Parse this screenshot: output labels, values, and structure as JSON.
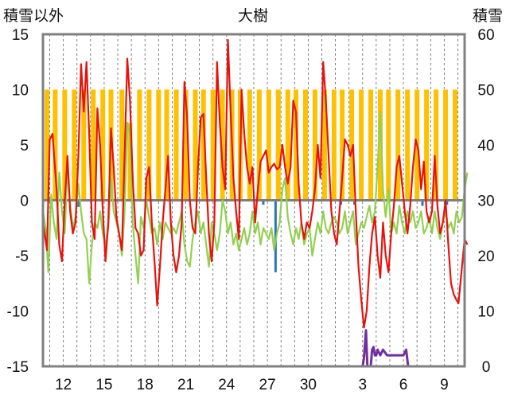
{
  "chart_data": {
    "type": "line",
    "title": "大樹",
    "left_axis_label": "積雪以外",
    "right_axis_label": "積雪",
    "left_ylim": [
      -15,
      15
    ],
    "right_ylim": [
      0,
      60
    ],
    "left_ticks": [
      "15",
      "10",
      "5",
      "0",
      "-5",
      "-10",
      "-15"
    ],
    "right_ticks": [
      "60",
      "50",
      "40",
      "30",
      "20",
      "10",
      "0"
    ],
    "x_ticks": [
      {
        "day": 12,
        "label": "12"
      },
      {
        "day": 15,
        "label": "15"
      },
      {
        "day": 18,
        "label": "18"
      },
      {
        "day": 21,
        "label": "21"
      },
      {
        "day": 24,
        "label": "24"
      },
      {
        "day": 27,
        "label": "27"
      },
      {
        "day": 30,
        "label": "30"
      },
      {
        "day": 34,
        "label": "3"
      },
      {
        "day": 37,
        "label": "6"
      },
      {
        "day": 40,
        "label": "9"
      }
    ],
    "xlim": [
      10.5,
      41.5
    ],
    "grid": "vertical-dashed-daily",
    "colors": {
      "sunshine": "#FFC000",
      "precip": "#2E75B6",
      "temperature": "#E8120C",
      "other": "#92D050",
      "snow": "#7030A0",
      "zero_line": "#7F7F7F",
      "frame": "#808080"
    },
    "sunshine_bars": [
      {
        "day": 10.8,
        "top": 10
      },
      {
        "day": 11.4,
        "top": 10
      },
      {
        "day": 12.1,
        "top": 10
      },
      {
        "day": 12.8,
        "top": 10
      },
      {
        "day": 13.5,
        "top": 10
      },
      {
        "day": 14.2,
        "top": 10
      },
      {
        "day": 14.9,
        "top": 10
      },
      {
        "day": 15.5,
        "top": 10
      },
      {
        "day": 16.3,
        "top": 10
      },
      {
        "day": 16.9,
        "top": 7
      },
      {
        "day": 17.6,
        "top": 10
      },
      {
        "day": 18.3,
        "top": 10
      },
      {
        "day": 19.0,
        "top": 10
      },
      {
        "day": 19.6,
        "top": 10
      },
      {
        "day": 20.3,
        "top": 10
      },
      {
        "day": 21.0,
        "top": 10
      },
      {
        "day": 21.7,
        "top": 10
      },
      {
        "day": 22.3,
        "top": 10
      },
      {
        "day": 23.0,
        "top": 10
      },
      {
        "day": 23.7,
        "top": 10
      },
      {
        "day": 24.4,
        "top": 10
      },
      {
        "day": 25.0,
        "top": 10
      },
      {
        "day": 25.7,
        "top": 10
      },
      {
        "day": 26.4,
        "top": 10
      },
      {
        "day": 27.1,
        "top": 10
      },
      {
        "day": 27.8,
        "top": 10
      },
      {
        "day": 28.5,
        "top": 10
      },
      {
        "day": 29.1,
        "top": 10
      },
      {
        "day": 29.8,
        "top": 10
      },
      {
        "day": 30.5,
        "top": 10
      },
      {
        "day": 31.2,
        "top": 10
      },
      {
        "day": 31.9,
        "top": 10
      },
      {
        "day": 32.5,
        "top": 10
      },
      {
        "day": 33.2,
        "top": 10
      },
      {
        "day": 33.9,
        "top": 10
      },
      {
        "day": 34.6,
        "top": 10
      },
      {
        "day": 35.3,
        "top": 10
      },
      {
        "day": 35.9,
        "top": 10
      },
      {
        "day": 36.6,
        "top": 10
      },
      {
        "day": 37.3,
        "top": 10
      },
      {
        "day": 38.0,
        "top": 10
      },
      {
        "day": 38.7,
        "top": 10
      },
      {
        "day": 39.4,
        "top": 10
      },
      {
        "day": 40.1,
        "top": 10
      },
      {
        "day": 40.8,
        "top": 10
      }
    ],
    "precip_bars": [
      {
        "day": 13.1,
        "value": -0.6
      },
      {
        "day": 26.7,
        "value": -0.4
      },
      {
        "day": 27.6,
        "value": -6.5
      },
      {
        "day": 32.4,
        "value": -0.4
      },
      {
        "day": 33.4,
        "value": -0.4
      },
      {
        "day": 38.4,
        "value": -0.5
      },
      {
        "day": 40.2,
        "value": -0.4
      }
    ],
    "temperature": [
      [
        10.5,
        -2
      ],
      [
        10.8,
        -4.5
      ],
      [
        11.0,
        5.5
      ],
      [
        11.2,
        6
      ],
      [
        11.5,
        1
      ],
      [
        11.7,
        -4
      ],
      [
        11.9,
        -5.5
      ],
      [
        12.1,
        0
      ],
      [
        12.3,
        4
      ],
      [
        12.5,
        -1
      ],
      [
        12.7,
        -3
      ],
      [
        12.9,
        -2
      ],
      [
        13.1,
        4
      ],
      [
        13.3,
        12.3
      ],
      [
        13.5,
        8
      ],
      [
        13.7,
        12.5
      ],
      [
        13.9,
        6
      ],
      [
        14.1,
        -2
      ],
      [
        14.3,
        -3.5
      ],
      [
        14.5,
        8.3
      ],
      [
        14.7,
        5
      ],
      [
        14.9,
        -1
      ],
      [
        15.1,
        -5.5
      ],
      [
        15.3,
        -2
      ],
      [
        15.5,
        6.5
      ],
      [
        15.7,
        3
      ],
      [
        15.9,
        -1.5
      ],
      [
        16.1,
        -3
      ],
      [
        16.3,
        -4.5
      ],
      [
        16.5,
        4
      ],
      [
        16.7,
        12.8
      ],
      [
        16.9,
        9
      ],
      [
        17.1,
        2
      ],
      [
        17.3,
        -2.5
      ],
      [
        17.5,
        -3
      ],
      [
        17.7,
        -5
      ],
      [
        17.9,
        -4.5
      ],
      [
        18.1,
        2
      ],
      [
        18.3,
        3
      ],
      [
        18.5,
        -2
      ],
      [
        18.7,
        -5.5
      ],
      [
        18.9,
        -9.5
      ],
      [
        19.1,
        -6
      ],
      [
        19.3,
        -2
      ],
      [
        19.5,
        1
      ],
      [
        19.7,
        4
      ],
      [
        19.9,
        -2
      ],
      [
        20.1,
        -5
      ],
      [
        20.3,
        -6.5
      ],
      [
        20.5,
        -5
      ],
      [
        20.7,
        -2
      ],
      [
        20.9,
        10.7
      ],
      [
        21.1,
        7.5
      ],
      [
        21.3,
        0
      ],
      [
        21.5,
        -2.5
      ],
      [
        21.7,
        -3
      ],
      [
        21.9,
        3
      ],
      [
        22.1,
        7.5
      ],
      [
        22.3,
        7.8
      ],
      [
        22.5,
        2
      ],
      [
        22.7,
        -3
      ],
      [
        22.9,
        -5.5
      ],
      [
        23.1,
        -2
      ],
      [
        23.3,
        12.5
      ],
      [
        23.5,
        7
      ],
      [
        23.7,
        3
      ],
      [
        23.9,
        1
      ],
      [
        24.1,
        14.5
      ],
      [
        24.3,
        8
      ],
      [
        24.5,
        2
      ],
      [
        24.7,
        -1
      ],
      [
        24.9,
        -3.5
      ],
      [
        25.1,
        10
      ],
      [
        25.3,
        6
      ],
      [
        25.5,
        3
      ],
      [
        25.7,
        1.5
      ],
      [
        25.9,
        3
      ],
      [
        26.1,
        -2
      ],
      [
        26.3,
        1
      ],
      [
        26.5,
        3.5
      ],
      [
        26.7,
        4
      ],
      [
        26.9,
        4.5
      ],
      [
        27.1,
        2.5
      ],
      [
        27.3,
        3
      ],
      [
        27.5,
        3.3
      ],
      [
        27.7,
        2.8
      ],
      [
        27.9,
        3
      ],
      [
        28.1,
        5
      ],
      [
        28.3,
        3
      ],
      [
        28.5,
        1.5
      ],
      [
        28.7,
        3
      ],
      [
        28.9,
        9
      ],
      [
        29.1,
        8
      ],
      [
        29.3,
        1.5
      ],
      [
        29.5,
        -2
      ],
      [
        29.7,
        -3.5
      ],
      [
        29.9,
        -2
      ],
      [
        30.1,
        -2.5
      ],
      [
        30.3,
        -1
      ],
      [
        30.5,
        1
      ],
      [
        30.7,
        5
      ],
      [
        30.9,
        2
      ],
      [
        31.1,
        12.5
      ],
      [
        31.3,
        9
      ],
      [
        31.5,
        4
      ],
      [
        31.7,
        -1
      ],
      [
        31.9,
        -3
      ],
      [
        32.1,
        -4
      ],
      [
        32.3,
        -1
      ],
      [
        32.5,
        2
      ],
      [
        32.7,
        5.5
      ],
      [
        32.9,
        5
      ],
      [
        33.1,
        4
      ],
      [
        33.3,
        5
      ],
      [
        33.5,
        -1
      ],
      [
        33.7,
        -6
      ],
      [
        33.9,
        -9
      ],
      [
        34.1,
        -11.5
      ],
      [
        34.3,
        -10
      ],
      [
        34.5,
        -6
      ],
      [
        34.7,
        -3
      ],
      [
        34.9,
        -1.5
      ],
      [
        35.1,
        -5
      ],
      [
        35.3,
        -7
      ],
      [
        35.5,
        -2
      ],
      [
        35.7,
        -5
      ],
      [
        35.9,
        -6.5
      ],
      [
        36.1,
        -3
      ],
      [
        36.3,
        -0.5
      ],
      [
        36.5,
        3
      ],
      [
        36.7,
        4
      ],
      [
        36.9,
        1.5
      ],
      [
        37.1,
        -1
      ],
      [
        37.3,
        -3
      ],
      [
        37.5,
        -0.5
      ],
      [
        37.7,
        3
      ],
      [
        37.9,
        5.5
      ],
      [
        38.1,
        4.5
      ],
      [
        38.3,
        1
      ],
      [
        38.5,
        3.5
      ],
      [
        38.7,
        -1
      ],
      [
        38.9,
        -2
      ],
      [
        39.1,
        -1
      ],
      [
        39.3,
        4
      ],
      [
        39.5,
        -0.5
      ],
      [
        39.7,
        -3
      ],
      [
        39.9,
        -2
      ],
      [
        40.1,
        0
      ],
      [
        40.3,
        -4
      ],
      [
        40.5,
        -7.5
      ],
      [
        40.7,
        -8.5
      ],
      [
        40.9,
        -9
      ],
      [
        41.05,
        -9.3
      ],
      [
        41.5,
        -3.5
      ],
      [
        41.7,
        -4
      ]
    ],
    "other": [
      [
        10.5,
        -1
      ],
      [
        10.7,
        -2.5
      ],
      [
        10.9,
        -6.5
      ],
      [
        11.1,
        0.5
      ],
      [
        11.3,
        -2
      ],
      [
        11.5,
        -3.5
      ],
      [
        11.7,
        2.5
      ],
      [
        11.9,
        -1
      ],
      [
        12.1,
        -3
      ],
      [
        12.3,
        3
      ],
      [
        12.5,
        -0.5
      ],
      [
        12.7,
        -2.5
      ],
      [
        12.9,
        -1.5
      ],
      [
        13.1,
        1.5
      ],
      [
        13.3,
        -1
      ],
      [
        13.5,
        -3
      ],
      [
        13.7,
        -3.5
      ],
      [
        13.9,
        -7.5
      ],
      [
        14.1,
        -4
      ],
      [
        14.3,
        -2
      ],
      [
        14.5,
        -2.5
      ],
      [
        14.7,
        -1
      ],
      [
        14.9,
        -3
      ],
      [
        15.1,
        -4
      ],
      [
        15.3,
        -2.5
      ],
      [
        15.5,
        2
      ],
      [
        15.7,
        -1
      ],
      [
        15.9,
        -2
      ],
      [
        16.1,
        -3
      ],
      [
        16.3,
        -5
      ],
      [
        16.5,
        -1
      ],
      [
        16.7,
        7
      ],
      [
        16.9,
        6
      ],
      [
        17.1,
        -2
      ],
      [
        17.3,
        -5
      ],
      [
        17.5,
        -7.5
      ],
      [
        17.7,
        -1.5
      ],
      [
        17.9,
        -2.5
      ],
      [
        18.1,
        0
      ],
      [
        18.3,
        -1.5
      ],
      [
        18.5,
        -3
      ],
      [
        18.7,
        -2.5
      ],
      [
        18.9,
        -4
      ],
      [
        19.1,
        -2
      ],
      [
        19.3,
        -3.5
      ],
      [
        19.5,
        -2
      ],
      [
        19.7,
        -2.5
      ],
      [
        19.9,
        -3
      ],
      [
        20.1,
        -2.5
      ],
      [
        20.3,
        -3
      ],
      [
        20.5,
        -2
      ],
      [
        20.7,
        -1
      ],
      [
        20.9,
        -4
      ],
      [
        21.1,
        -5.5
      ],
      [
        21.3,
        -6
      ],
      [
        21.5,
        -3.5
      ],
      [
        21.7,
        -2
      ],
      [
        21.9,
        -1
      ],
      [
        22.1,
        -3
      ],
      [
        22.3,
        -2
      ],
      [
        22.5,
        -4
      ],
      [
        22.7,
        -6
      ],
      [
        22.9,
        -2
      ],
      [
        23.1,
        -3
      ],
      [
        23.3,
        -4.5
      ],
      [
        23.5,
        -3
      ],
      [
        23.7,
        0
      ],
      [
        23.9,
        -1
      ],
      [
        24.1,
        -3
      ],
      [
        24.3,
        -2
      ],
      [
        24.5,
        -4
      ],
      [
        24.7,
        -3
      ],
      [
        24.9,
        -4.5
      ],
      [
        25.1,
        -3.5
      ],
      [
        25.3,
        -2.5
      ],
      [
        25.5,
        -4
      ],
      [
        25.7,
        -3
      ],
      [
        25.9,
        -1
      ],
      [
        26.1,
        -3
      ],
      [
        26.3,
        -2
      ],
      [
        26.5,
        -4
      ],
      [
        26.7,
        -2.5
      ],
      [
        26.9,
        -3
      ],
      [
        27.1,
        -3.5
      ],
      [
        27.3,
        -2.5
      ],
      [
        27.5,
        -4.5
      ],
      [
        27.7,
        -3
      ],
      [
        27.9,
        -2
      ],
      [
        28.1,
        1
      ],
      [
        28.3,
        2
      ],
      [
        28.5,
        -1.5
      ],
      [
        28.7,
        -3
      ],
      [
        28.9,
        -4
      ],
      [
        29.1,
        -2.5
      ],
      [
        29.3,
        -3.5
      ],
      [
        29.5,
        -2
      ],
      [
        29.7,
        -4
      ],
      [
        29.9,
        -3
      ],
      [
        30.1,
        -2.5
      ],
      [
        30.3,
        -5
      ],
      [
        30.5,
        -3.5
      ],
      [
        30.7,
        -2
      ],
      [
        30.9,
        -3
      ],
      [
        31.1,
        -1
      ],
      [
        31.3,
        -2.5
      ],
      [
        31.5,
        -3
      ],
      [
        31.7,
        -2
      ],
      [
        31.9,
        -1.5
      ],
      [
        32.1,
        -2
      ],
      [
        32.3,
        -3
      ],
      [
        32.5,
        -2.5
      ],
      [
        32.7,
        -1
      ],
      [
        32.9,
        -3
      ],
      [
        33.1,
        -2
      ],
      [
        33.3,
        -1
      ],
      [
        33.5,
        -4
      ],
      [
        33.7,
        -3
      ],
      [
        33.9,
        -2
      ],
      [
        34.1,
        -2.5
      ],
      [
        34.3,
        -1.5
      ],
      [
        34.5,
        -0.5
      ],
      [
        34.7,
        -2
      ],
      [
        34.9,
        -1
      ],
      [
        35.1,
        3
      ],
      [
        35.3,
        8
      ],
      [
        35.5,
        1
      ],
      [
        35.7,
        -1.5
      ],
      [
        35.9,
        1
      ],
      [
        36.1,
        -3
      ],
      [
        36.3,
        -2
      ],
      [
        36.5,
        -3
      ],
      [
        36.7,
        -0.5
      ],
      [
        36.9,
        -2
      ],
      [
        37.1,
        -3
      ],
      [
        37.3,
        -1
      ],
      [
        37.5,
        -2
      ],
      [
        37.7,
        -1
      ],
      [
        37.9,
        -2.5
      ],
      [
        38.1,
        -2
      ],
      [
        38.3,
        -1
      ],
      [
        38.5,
        -3
      ],
      [
        38.7,
        -2.5
      ],
      [
        38.9,
        -1.5
      ],
      [
        39.1,
        -3
      ],
      [
        39.3,
        -1
      ],
      [
        39.5,
        -2.5
      ],
      [
        39.7,
        -3.5
      ],
      [
        39.9,
        -2
      ],
      [
        40.1,
        -1
      ],
      [
        40.3,
        -2.5
      ],
      [
        40.5,
        -2
      ],
      [
        40.7,
        -3
      ],
      [
        40.9,
        -1
      ],
      [
        41.1,
        -2
      ],
      [
        41.3,
        -1.5
      ],
      [
        41.5,
        1
      ],
      [
        41.7,
        2.5
      ]
    ],
    "snow_depth": [
      [
        10.5,
        0
      ],
      [
        34.0,
        0
      ],
      [
        34.1,
        1.5
      ],
      [
        34.25,
        6.5
      ],
      [
        34.35,
        0
      ],
      [
        34.6,
        0
      ],
      [
        34.7,
        3
      ],
      [
        34.8,
        3.5
      ],
      [
        34.9,
        2
      ],
      [
        35.0,
        2
      ],
      [
        35.1,
        3
      ],
      [
        35.3,
        2
      ],
      [
        35.5,
        3
      ],
      [
        35.8,
        2
      ],
      [
        36.1,
        2
      ],
      [
        36.4,
        2
      ],
      [
        36.7,
        2
      ],
      [
        37.0,
        2
      ],
      [
        37.2,
        3
      ],
      [
        37.35,
        0
      ],
      [
        41.5,
        0
      ]
    ]
  }
}
